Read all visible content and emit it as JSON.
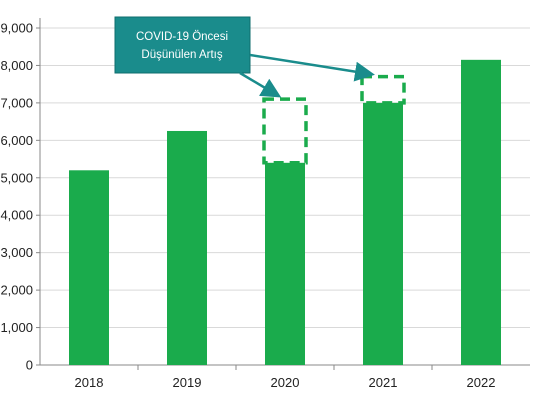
{
  "chart_data": {
    "type": "bar",
    "categories": [
      "2018",
      "2019",
      "2020",
      "2021",
      "2022"
    ],
    "values": [
      5200,
      6250,
      5400,
      7000,
      8150
    ],
    "pre_covid_expected": [
      null,
      null,
      7100,
      7700,
      null
    ],
    "y_tick_labels": [
      "0",
      "1,000",
      "2,000",
      "3,000",
      "4,000",
      "5,000",
      "6,000",
      "7,000",
      "8,000",
      "9,000"
    ],
    "y_tick_values": [
      0,
      1000,
      2000,
      3000,
      4000,
      5000,
      6000,
      7000,
      8000,
      9000
    ],
    "ylim": [
      0,
      9000
    ],
    "grid": true,
    "annotation": {
      "line1": "COVID-19 Öncesi",
      "line2": "Düşünülen Artış"
    },
    "colors": {
      "bar": "#1aab4c",
      "dashed_box": "#1aab4c",
      "annotation_fill": "#1a8c8c",
      "annotation_border": "#0f6e6e",
      "arrow": "#1a8c8c",
      "grid": "#d9d9d9",
      "axis": "#888888"
    }
  }
}
